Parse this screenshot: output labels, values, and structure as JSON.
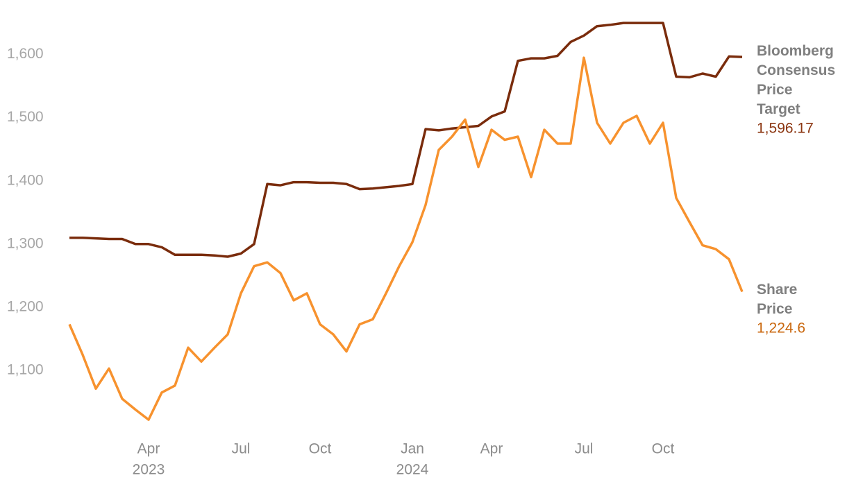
{
  "chart_data": {
    "type": "line",
    "categories": [
      null,
      null,
      null,
      null,
      null,
      null,
      "Apr",
      null,
      null,
      null,
      null,
      null,
      null,
      "Jul",
      null,
      null,
      null,
      null,
      null,
      "Oct",
      null,
      null,
      null,
      null,
      null,
      null,
      "Jan",
      null,
      null,
      null,
      null,
      null,
      "Apr",
      null,
      null,
      null,
      null,
      null,
      null,
      "Jul",
      null,
      null,
      null,
      null,
      null,
      "Oct",
      null,
      null,
      null,
      null,
      null,
      null
    ],
    "year_labels": [
      null,
      null,
      null,
      null,
      null,
      null,
      "2023",
      null,
      null,
      null,
      null,
      null,
      null,
      null,
      null,
      null,
      null,
      null,
      null,
      null,
      null,
      null,
      null,
      null,
      null,
      null,
      "2024",
      null,
      null,
      null,
      null,
      null,
      null,
      null,
      null,
      null,
      null,
      null,
      null,
      null,
      null,
      null,
      null,
      null,
      null,
      null,
      null,
      null,
      null,
      null,
      null,
      null
    ],
    "series": [
      {
        "name": "Bloomberg Consensus Price Target",
        "color": "#7a2c0c",
        "values": [
          1310,
          1310,
          1309,
          1308,
          1308,
          1300,
          1300,
          1295,
          1283,
          1283,
          1283,
          1282,
          1280,
          1285,
          1300,
          1395,
          1393,
          1398,
          1398,
          1397,
          1397,
          1395,
          1387,
          1388,
          1390,
          1392,
          1395,
          1482,
          1480,
          1483,
          1485,
          1487,
          1502,
          1510,
          1590,
          1594,
          1594,
          1598,
          1620,
          1630,
          1645,
          1647,
          1650,
          1650,
          1650,
          1650,
          1565,
          1564,
          1570,
          1565,
          1597,
          1596.17
        ],
        "value_labels": [
          null,
          null,
          null,
          null,
          null,
          null,
          null,
          null,
          null,
          null,
          null,
          null,
          null,
          null,
          null,
          null,
          null,
          null,
          null,
          null,
          null,
          null,
          null,
          null,
          null,
          null,
          null,
          null,
          null,
          null,
          null,
          null,
          null,
          null,
          null,
          null,
          null,
          null,
          null,
          null,
          null,
          null,
          null,
          null,
          null,
          null,
          null,
          null,
          null,
          null,
          null,
          "1,596.17"
        ]
      },
      {
        "name": "Share Price",
        "color": "#f7922e",
        "values": [
          1173,
          1125,
          1071,
          1103,
          1055,
          1038,
          1022,
          1065,
          1076,
          1136,
          1114,
          1136,
          1157,
          1222,
          1265,
          1271,
          1254,
          1211,
          1222,
          1173,
          1157,
          1130,
          1173,
          1181,
          1222,
          1265,
          1303,
          1362,
          1449,
          1470,
          1497,
          1422,
          1481,
          1465,
          1470,
          1406,
          1481,
          1459,
          1459,
          1595,
          1492,
          1459,
          1492,
          1503,
          1459,
          1492,
          1373,
          1335,
          1298,
          1292,
          1276,
          1224.6
        ],
        "value_labels": [
          null,
          null,
          null,
          null,
          null,
          null,
          null,
          null,
          null,
          null,
          null,
          null,
          null,
          null,
          null,
          null,
          null,
          null,
          null,
          null,
          null,
          null,
          null,
          null,
          null,
          null,
          null,
          null,
          null,
          null,
          null,
          null,
          null,
          null,
          null,
          null,
          null,
          null,
          null,
          null,
          null,
          null,
          null,
          null,
          null,
          null,
          null,
          null,
          null,
          null,
          null,
          "1,224.6"
        ]
      }
    ],
    "ylim": [
      1000,
      1660
    ],
    "yticks": [
      {
        "value": 1100,
        "label": "1,100"
      },
      {
        "value": 1200,
        "label": "1,200"
      },
      {
        "value": 1300,
        "label": "1,300"
      },
      {
        "value": 1400,
        "label": "1,400"
      },
      {
        "value": 1500,
        "label": "1,500"
      },
      {
        "value": 1600,
        "label": "1,600"
      }
    ]
  }
}
